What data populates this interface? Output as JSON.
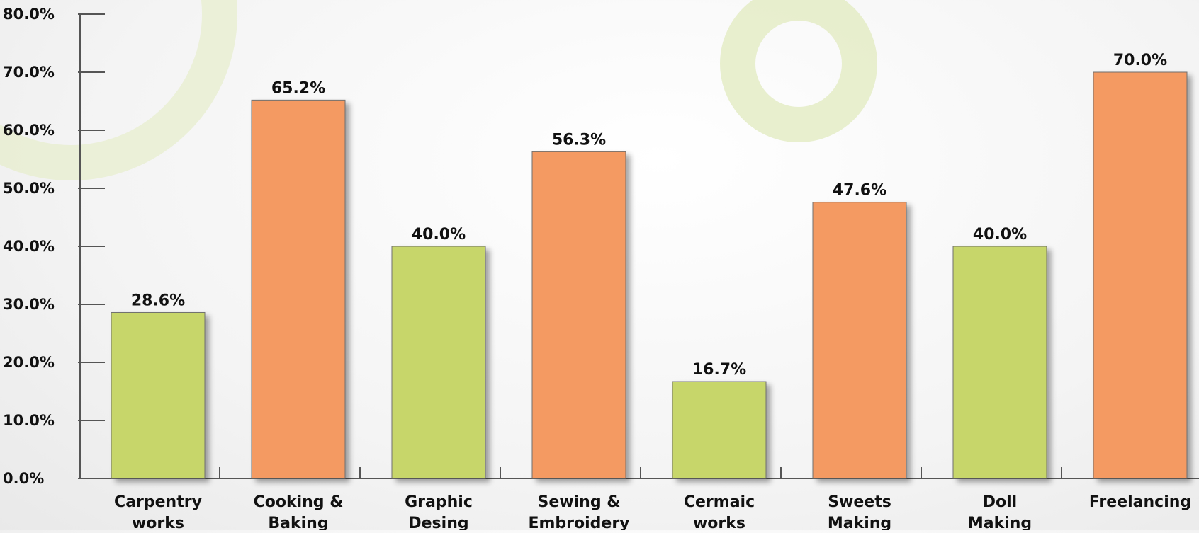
{
  "chart_data": {
    "type": "bar",
    "categories": [
      [
        "Carpentry",
        "works"
      ],
      [
        "Cooking &",
        "Baking"
      ],
      [
        "Graphic",
        "Desing"
      ],
      [
        "Sewing &",
        "Embroidery"
      ],
      [
        "Cermaic",
        "works"
      ],
      [
        "Sweets",
        "Making"
      ],
      [
        "Doll",
        "Making"
      ],
      [
        "Freelancing"
      ]
    ],
    "values": [
      28.6,
      65.2,
      40.0,
      56.3,
      16.7,
      47.6,
      40.0,
      70.0
    ],
    "value_labels": [
      "28.6%",
      "65.2%",
      "40.0%",
      "56.3%",
      "16.7%",
      "47.6%",
      "40.0%",
      "70.0%"
    ],
    "bar_colors": [
      "#c7d66a",
      "#f49a62",
      "#c7d66a",
      "#f49a62",
      "#c7d66a",
      "#f49a62",
      "#c7d66a",
      "#f49a62"
    ],
    "yticks": [
      0,
      10,
      20,
      30,
      40,
      50,
      60,
      70,
      80
    ],
    "ytick_labels": [
      "0.0%",
      "10.0%",
      "20.0%",
      "30.0%",
      "40.0%",
      "50.0%",
      "60.0%",
      "70.0%",
      "80.0%"
    ],
    "ylim": [
      0,
      80
    ],
    "grid": false,
    "legend": "none",
    "title": "",
    "xlabel": "",
    "ylabel": ""
  },
  "colors": {
    "green_bar": "#c7d66a",
    "orange_bar": "#f49a62",
    "decor_ring": "#e4ecc5",
    "axis": "#555555"
  }
}
